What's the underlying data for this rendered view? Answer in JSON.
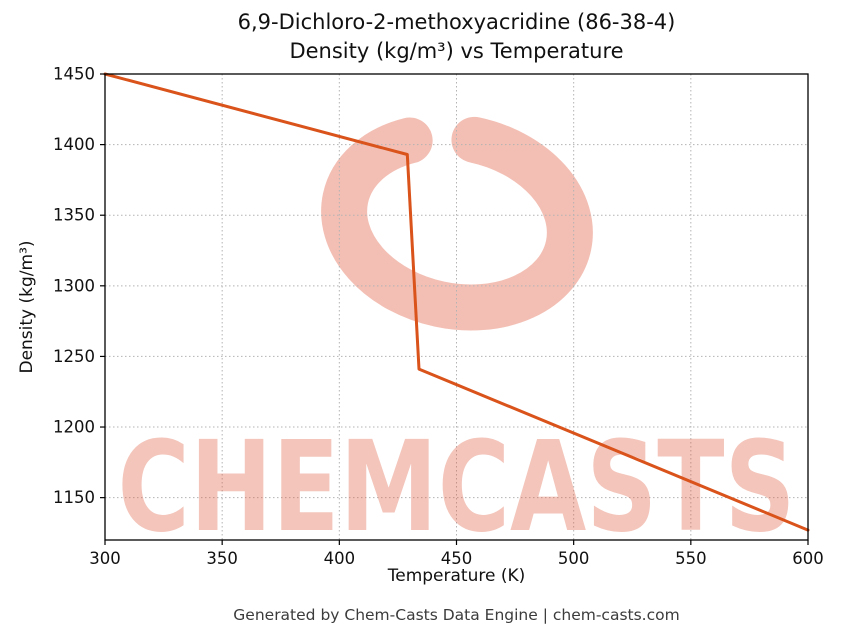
{
  "title": {
    "line1": "6,9-Dichloro-2-methoxyacridine (86-38-4)",
    "line2": "Density (kg/m³) vs Temperature"
  },
  "footer": "Generated by Chem-Casts Data Engine | chem-casts.com",
  "watermark": {
    "text": "CHEMCASTS",
    "logo": "swirl-circle-logo",
    "color": "#e06044"
  },
  "chart_data": {
    "type": "line",
    "title": "6,9-Dichloro-2-methoxyacridine (86-38-4) Density (kg/m³) vs Temperature",
    "xlabel": "Temperature (K)",
    "ylabel": "Density (kg/m³)",
    "xlim": [
      300,
      600
    ],
    "ylim": [
      1120,
      1450
    ],
    "x_ticks": [
      300,
      350,
      400,
      450,
      500,
      550,
      600
    ],
    "y_ticks": [
      1150,
      1200,
      1250,
      1300,
      1350,
      1400,
      1450
    ],
    "grid": true,
    "legend": false,
    "line_color": "#d9531b",
    "series": [
      {
        "name": "Density",
        "x": [
          300,
          429,
          434,
          600
        ],
        "y": [
          1450,
          1393,
          1241,
          1127
        ]
      }
    ]
  }
}
